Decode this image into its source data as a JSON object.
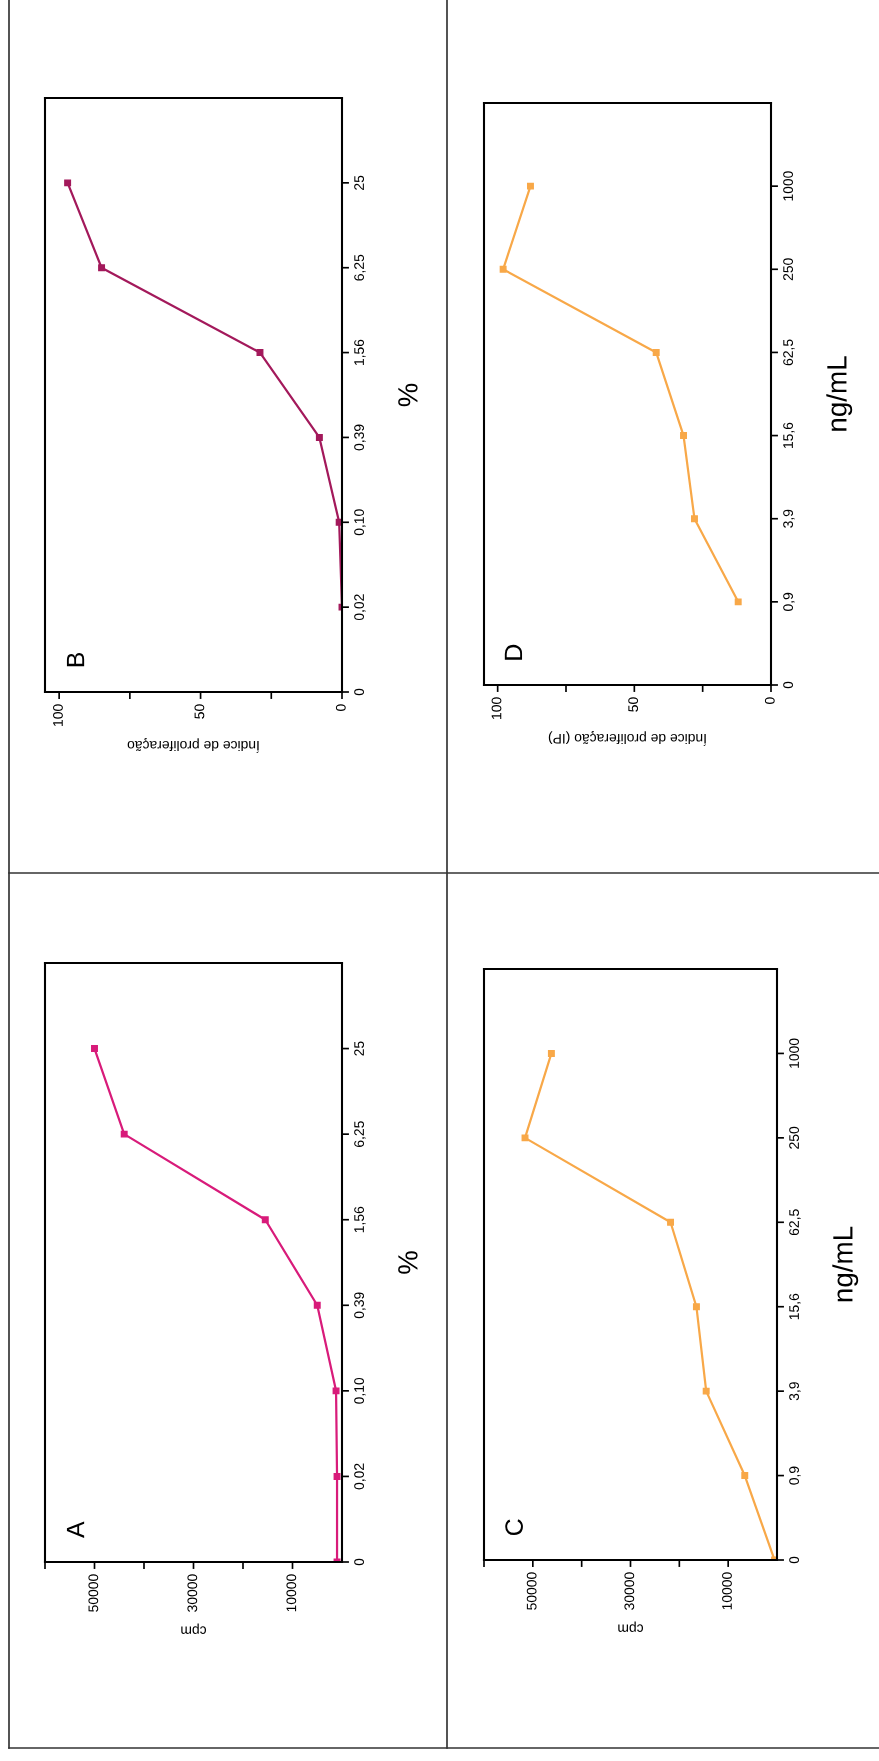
{
  "chart_data": [
    {
      "type": "line",
      "title": "A",
      "orientation": "horizontal",
      "xlabel": "cpm",
      "ylabel": "%",
      "categories": [
        "25",
        "6,25",
        "1,56",
        "0,39",
        "0,10",
        "0,02",
        "0"
      ],
      "series": [
        {
          "color": "#d81b7a",
          "values": [
            50000,
            44000,
            15500,
            5000,
            1200,
            1000,
            1000
          ]
        }
      ],
      "xlim": [
        60000,
        0
      ],
      "xticks": [
        {
          "value": 60000,
          "label": null
        },
        50000,
        {
          "value": 40000,
          "label": null
        },
        30000,
        {
          "value": 20000,
          "label": null
        },
        10000
      ],
      "marker": "square",
      "line_style": "solid",
      "grid": false,
      "legend": false
    },
    {
      "type": "line",
      "title": "B",
      "orientation": "horizontal",
      "xlabel": "Índice de proliferação",
      "ylabel": "%",
      "categories": [
        "25",
        "6,25",
        "1,56",
        "0,39",
        "0,10",
        "0,02",
        "0"
      ],
      "series": [
        {
          "color": "#a3195b",
          "values": [
            97,
            85,
            29,
            8,
            1,
            0,
            null
          ]
        }
      ],
      "xlim": [
        105,
        0
      ],
      "xticks": [
        100,
        {
          "value": 75,
          "label": null
        },
        50,
        {
          "value": 25,
          "label": null
        },
        0
      ],
      "marker": "square",
      "line_style": "solid",
      "grid": false,
      "legend": false
    },
    {
      "type": "line",
      "title": "C",
      "orientation": "horizontal",
      "xlabel": "cpm",
      "ylabel": "ng/mL",
      "categories": [
        "1000",
        "250",
        "62,5",
        "15,6",
        "3,9",
        "0,9",
        "0"
      ],
      "series": [
        {
          "color": "#f8a848",
          "values": [
            46200,
            51600,
            21800,
            16500,
            14500,
            6600,
            500
          ]
        }
      ],
      "xlim": [
        60000,
        0
      ],
      "xticks": [
        {
          "value": 60000,
          "label": null
        },
        50000,
        {
          "value": 40000,
          "label": null
        },
        30000,
        {
          "value": 20000,
          "label": null
        },
        10000
      ],
      "marker": "square",
      "line_style": "solid",
      "grid": false,
      "legend": false
    },
    {
      "type": "line",
      "title": "D",
      "orientation": "horizontal",
      "xlabel": "Índice de proliferação (IP)",
      "ylabel": "ng/mL",
      "categories": [
        "1000",
        "250",
        "62,5",
        "15,6",
        "3,9",
        "0,9",
        "0"
      ],
      "series": [
        {
          "color": "#f8a848",
          "values": [
            88,
            98,
            42,
            32,
            28,
            12,
            null
          ]
        }
      ],
      "xlim": [
        105,
        0
      ],
      "xticks": [
        100,
        {
          "value": 75,
          "label": null
        },
        50,
        {
          "value": 25,
          "label": null
        },
        0
      ],
      "marker": "square",
      "line_style": "solid",
      "grid": false,
      "legend": false
    }
  ]
}
